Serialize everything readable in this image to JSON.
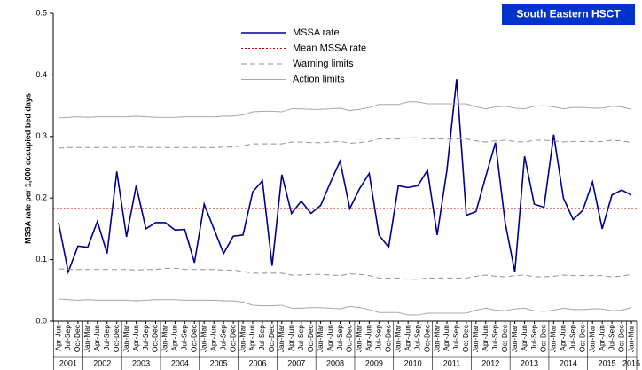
{
  "chart_data": {
    "type": "line",
    "title": "South Eastern HSCT",
    "y_label": "MSSA rate per 1,000 occupied bed days",
    "categories": [
      "Apr-Jun",
      "Jul-Sep",
      "Oct-Dec",
      "Jan-Mar",
      "Apr-Jun",
      "Jul-Sep",
      "Oct-Dec",
      "Jan-Mar",
      "Apr-Jun",
      "Jul-Sep",
      "Oct-Dec",
      "Jan-Mar",
      "Apr-Jun",
      "Jul-Sep",
      "Oct-Dec",
      "Jan-Mar",
      "Apr-Jun",
      "Jul-Sep",
      "Oct-Dec",
      "Jan-Mar",
      "Apr-Jun",
      "Jul-Sep",
      "Oct-Dec",
      "Jan-Mar",
      "Apr-Jun",
      "Jul-Sep",
      "Oct-Dec",
      "Jan-Mar",
      "Apr-Jun",
      "Jul-Sep",
      "Oct-Dec",
      "Jan-Mar",
      "Apr-Jun",
      "Jul-Sep",
      "Oct-Dec",
      "Jan-Mar",
      "Apr-Jun",
      "Jul-Sep",
      "Oct-Dec",
      "Jan-Mar",
      "Apr-Jun",
      "Jul-Sep",
      "Oct-Dec",
      "Jan-Mar",
      "Apr-Jun",
      "Jul-Sep",
      "Oct-Dec",
      "Jan-Mar",
      "Apr-Jun",
      "Jul-Sep",
      "Oct-Dec",
      "Jan-Mar",
      "Apr-Jun",
      "Jul-Sep",
      "Oct-Dec",
      "Jan-Mar",
      "Apr-Jun",
      "Jul-Sep",
      "Oct-Dec",
      "Jan-Mar"
    ],
    "years": [
      "2001",
      "2002",
      "2003",
      "2004",
      "2005",
      "2006",
      "2007",
      "2008",
      "2009",
      "2010",
      "2011",
      "2012",
      "2013",
      "2014",
      "2015",
      "2016"
    ],
    "ylim": [
      0,
      0.5
    ],
    "yticks": [
      {
        "value": 0,
        "label": "0.0"
      },
      0.1,
      0.2,
      0.3,
      0.4,
      0.5
    ],
    "grid": false,
    "series": [
      {
        "name": "MSSA rate",
        "color": "#00008b",
        "dash": "solid",
        "values": [
          0.16,
          0.08,
          0.122,
          0.12,
          0.162,
          0.11,
          0.243,
          0.137,
          0.22,
          0.15,
          0.16,
          0.16,
          0.148,
          0.149,
          0.095,
          0.19,
          0.15,
          0.11,
          0.138,
          0.14,
          0.21,
          0.228,
          0.09,
          0.238,
          0.175,
          0.195,
          0.175,
          0.188,
          0.225,
          0.26,
          0.183,
          0.215,
          0.24,
          0.14,
          0.12,
          0.22,
          0.217,
          0.22,
          0.245,
          0.14,
          0.245,
          0.393,
          0.172,
          0.178,
          0.235,
          0.29,
          0.16,
          0.08,
          0.268,
          0.19,
          0.185,
          0.303,
          0.2,
          0.165,
          0.18,
          0.226,
          0.15,
          0.205,
          0.213,
          0.205
        ]
      },
      {
        "name": "Mean MSSA rate",
        "color": "#c00000",
        "dash": "dotted",
        "value": 0.183
      },
      {
        "name": "Warning limits",
        "color": "#909090",
        "dash": "dashed",
        "upper": [
          0.281,
          0.282,
          0.282,
          0.282,
          0.282,
          0.282,
          0.282,
          0.282,
          0.283,
          0.282,
          0.282,
          0.282,
          0.282,
          0.282,
          0.282,
          0.282,
          0.282,
          0.283,
          0.283,
          0.285,
          0.288,
          0.288,
          0.288,
          0.288,
          0.291,
          0.291,
          0.29,
          0.29,
          0.291,
          0.292,
          0.289,
          0.29,
          0.292,
          0.296,
          0.296,
          0.296,
          0.298,
          0.298,
          0.296,
          0.296,
          0.296,
          0.296,
          0.296,
          0.293,
          0.291,
          0.293,
          0.294,
          0.292,
          0.291,
          0.294,
          0.294,
          0.293,
          0.291,
          0.292,
          0.292,
          0.292,
          0.292,
          0.294,
          0.293,
          0.29
        ],
        "lower": [
          0.085,
          0.084,
          0.084,
          0.084,
          0.084,
          0.084,
          0.084,
          0.084,
          0.083,
          0.084,
          0.084,
          0.086,
          0.086,
          0.084,
          0.084,
          0.084,
          0.084,
          0.083,
          0.083,
          0.081,
          0.078,
          0.078,
          0.078,
          0.078,
          0.075,
          0.075,
          0.076,
          0.076,
          0.075,
          0.074,
          0.077,
          0.076,
          0.074,
          0.07,
          0.07,
          0.07,
          0.068,
          0.068,
          0.07,
          0.07,
          0.07,
          0.07,
          0.07,
          0.073,
          0.075,
          0.073,
          0.072,
          0.074,
          0.075,
          0.072,
          0.072,
          0.073,
          0.075,
          0.074,
          0.074,
          0.074,
          0.074,
          0.072,
          0.073,
          0.076
        ]
      },
      {
        "name": "Action limits",
        "color": "#a8a8a8",
        "dash": "solid",
        "upper": [
          0.33,
          0.331,
          0.332,
          0.331,
          0.332,
          0.332,
          0.332,
          0.332,
          0.333,
          0.332,
          0.331,
          0.331,
          0.331,
          0.332,
          0.332,
          0.332,
          0.332,
          0.333,
          0.333,
          0.335,
          0.34,
          0.341,
          0.341,
          0.34,
          0.345,
          0.345,
          0.344,
          0.344,
          0.345,
          0.346,
          0.342,
          0.344,
          0.347,
          0.352,
          0.352,
          0.352,
          0.356,
          0.356,
          0.353,
          0.353,
          0.353,
          0.353,
          0.353,
          0.348,
          0.345,
          0.348,
          0.349,
          0.346,
          0.345,
          0.349,
          0.35,
          0.348,
          0.345,
          0.347,
          0.347,
          0.346,
          0.346,
          0.349,
          0.348,
          0.344
        ],
        "lower": [
          0.036,
          0.035,
          0.034,
          0.035,
          0.034,
          0.034,
          0.034,
          0.034,
          0.033,
          0.034,
          0.035,
          0.035,
          0.035,
          0.034,
          0.034,
          0.034,
          0.034,
          0.033,
          0.033,
          0.031,
          0.026,
          0.025,
          0.025,
          0.026,
          0.021,
          0.021,
          0.022,
          0.022,
          0.021,
          0.02,
          0.024,
          0.022,
          0.019,
          0.014,
          0.014,
          0.014,
          0.01,
          0.01,
          0.013,
          0.013,
          0.013,
          0.013,
          0.013,
          0.018,
          0.021,
          0.018,
          0.017,
          0.02,
          0.021,
          0.017,
          0.016,
          0.018,
          0.021,
          0.019,
          0.019,
          0.02,
          0.02,
          0.017,
          0.018,
          0.022
        ]
      }
    ]
  }
}
